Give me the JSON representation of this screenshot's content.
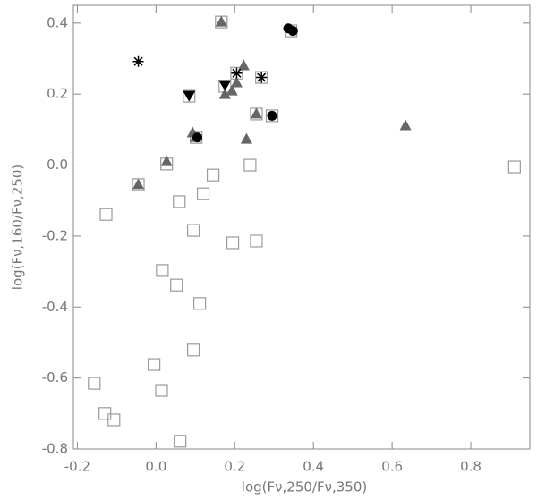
{
  "chart_data": {
    "type": "scatter",
    "xlabel": "log(Fν,250/Fν,350)",
    "ylabel": "log(Fν,160/Fν,250)",
    "xlim": [
      -0.21,
      0.95
    ],
    "ylim": [
      -0.8,
      0.45
    ],
    "xticks": [
      -0.2,
      {
        "value": 0,
        "label": "0.0"
      },
      0.2,
      0.4,
      0.6,
      0.8
    ],
    "yticks": [
      -0.8,
      -0.6,
      -0.4,
      -0.2,
      {
        "value": 0,
        "label": "0.0"
      },
      0.2,
      0.4
    ],
    "series": [
      {
        "marker": "square",
        "color": "#999999",
        "x": [
          -0.157,
          -0.13,
          -0.107,
          -0.127,
          -0.045,
          0.027,
          0.059,
          0.052,
          0.016,
          -0.005,
          0.014,
          0.061,
          0.095,
          0.111,
          0.095,
          0.12,
          0.145,
          0.195,
          0.255,
          0.239,
          0.911,
          0.102,
          0.084,
          0.175,
          0.205,
          0.268,
          0.295,
          0.343,
          0.166,
          0.255
        ],
        "y": [
          -0.615,
          -0.7,
          -0.718,
          -0.139,
          -0.055,
          0.003,
          -0.103,
          -0.338,
          -0.297,
          -0.562,
          -0.635,
          -0.778,
          -0.521,
          -0.39,
          -0.184,
          -0.081,
          -0.028,
          -0.219,
          -0.214,
          0.0,
          -0.005,
          0.078,
          0.194,
          0.222,
          0.259,
          0.247,
          0.139,
          0.378,
          0.403,
          0.144
        ]
      },
      {
        "marker": "triangle",
        "color": "#666666",
        "x": [
          -0.045,
          0.027,
          0.093,
          0.1,
          0.166,
          0.175,
          0.193,
          0.205,
          0.223,
          0.23,
          0.255,
          0.634
        ],
        "y": [
          -0.055,
          0.01,
          0.091,
          0.078,
          0.403,
          0.199,
          0.209,
          0.232,
          0.28,
          0.073,
          0.144,
          0.111
        ]
      },
      {
        "marker": "circle",
        "color": "#000000",
        "x": [
          0.105,
          0.295,
          0.336,
          0.348
        ],
        "y": [
          0.078,
          0.139,
          0.385,
          0.378
        ]
      },
      {
        "marker": "down-triangle",
        "color": "#000000",
        "x": [
          0.084,
          0.175
        ],
        "y": [
          0.194,
          0.224
        ]
      },
      {
        "marker": "asterisk",
        "color": "#000000",
        "x": [
          -0.045,
          0.205,
          0.268
        ],
        "y": [
          0.292,
          0.259,
          0.247
        ]
      }
    ]
  }
}
